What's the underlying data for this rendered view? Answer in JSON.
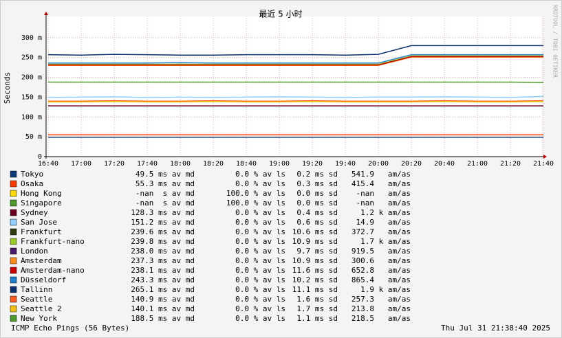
{
  "chart_data": {
    "type": "line",
    "title": "最近 5 小时",
    "y_label": "Seconds",
    "side_text": "RRDTOOL / TOBI OETIKER",
    "footer_left": "ICMP Echo Pings (56 Bytes)",
    "footer_right": "Thu Jul 31 21:38:40 2025",
    "x": [
      "16:40",
      "17:00",
      "17:20",
      "17:40",
      "18:00",
      "18:20",
      "18:40",
      "19:00",
      "19:20",
      "19:40",
      "20:00",
      "20:20",
      "20:40",
      "21:00",
      "21:20",
      "21:40"
    ],
    "ylim": [
      0,
      0.35
    ],
    "yticks": [
      {
        "value": 0,
        "label": "0"
      },
      {
        "value": 0.05,
        "label": "50 m"
      },
      {
        "value": 0.1,
        "label": "100 m"
      },
      {
        "value": 0.15,
        "label": "150 m"
      },
      {
        "value": 0.2,
        "label": "200 m"
      },
      {
        "value": 0.25,
        "label": "250 m"
      },
      {
        "value": 0.3,
        "label": "300 m"
      }
    ],
    "grid": true,
    "series": [
      {
        "name": "Tokyo",
        "color": "#0a3a7a",
        "values": [
          0.049,
          0.049,
          0.049,
          0.049,
          0.049,
          0.049,
          0.049,
          0.049,
          0.049,
          0.049,
          0.049,
          0.049,
          0.049,
          0.049,
          0.049,
          0.049
        ],
        "stats": [
          "49.5 ms av md",
          "0.0 % av ls",
          "0.2 ms sd",
          "541.9   am/as"
        ]
      },
      {
        "name": "Osaka",
        "color": "#ff3c00",
        "values": [
          0.055,
          0.055,
          0.055,
          0.055,
          0.055,
          0.055,
          0.055,
          0.055,
          0.055,
          0.055,
          0.055,
          0.055,
          0.055,
          0.055,
          0.055,
          0.055
        ],
        "stats": [
          "55.3 ms av md",
          "0.0 % av ls",
          "0.3 ms sd",
          "415.4   am/as"
        ]
      },
      {
        "name": "Hong Kong",
        "color": "#ffd700",
        "values": [
          null,
          null,
          null,
          null,
          null,
          null,
          null,
          null,
          null,
          null,
          null,
          null,
          null,
          null,
          null,
          null
        ],
        "stats": [
          "-nan  s av md",
          "100.0 % av ls",
          "0.0 ms sd",
          "-nan   am/as"
        ]
      },
      {
        "name": "Singapore",
        "color": "#4c9a2a",
        "values": [
          null,
          null,
          null,
          null,
          null,
          null,
          null,
          null,
          null,
          null,
          null,
          null,
          null,
          null,
          null,
          null
        ],
        "stats": [
          "-nan  s av md",
          "100.0 % av ls",
          "0.0 ms sd",
          "-nan   am/as"
        ]
      },
      {
        "name": "Sydney",
        "color": "#6b0020",
        "values": [
          0.128,
          0.128,
          0.128,
          0.128,
          0.128,
          0.128,
          0.128,
          0.128,
          0.128,
          0.128,
          0.128,
          0.128,
          0.128,
          0.128,
          0.128,
          0.128
        ],
        "stats": [
          "128.3 ms av md",
          "0.0 % av ls",
          "0.4 ms sd",
          "1.2 k am/as"
        ]
      },
      {
        "name": "San Jose",
        "color": "#8fcfff",
        "values": [
          0.149,
          0.15,
          0.151,
          0.149,
          0.15,
          0.149,
          0.15,
          0.151,
          0.15,
          0.149,
          0.15,
          0.15,
          0.151,
          0.15,
          0.149,
          0.152
        ],
        "stats": [
          "151.2 ms av md",
          "0.0 % av ls",
          "0.6 ms sd",
          "14.9   am/as"
        ]
      },
      {
        "name": "Frankfurt",
        "color": "#2e3d0f",
        "values": [
          0.232,
          0.232,
          0.232,
          0.232,
          0.233,
          0.232,
          0.232,
          0.232,
          0.232,
          0.232,
          0.232,
          0.253,
          0.253,
          0.253,
          0.253,
          0.253
        ],
        "stats": [
          "239.6 ms av md",
          "0.0 % av ls",
          "10.6 ms sd",
          "372.7   am/as"
        ]
      },
      {
        "name": "Frankfurt-nano",
        "color": "#99cc22",
        "values": [
          0.233,
          0.233,
          0.233,
          0.233,
          0.233,
          0.233,
          0.233,
          0.233,
          0.233,
          0.233,
          0.233,
          0.254,
          0.254,
          0.254,
          0.254,
          0.254
        ],
        "stats": [
          "239.8 ms av md",
          "0.0 % av ls",
          "10.9 ms sd",
          "1.7 k am/as"
        ]
      },
      {
        "name": "London",
        "color": "#4a1a6e",
        "values": [
          0.231,
          0.231,
          0.231,
          0.231,
          0.231,
          0.231,
          0.231,
          0.231,
          0.231,
          0.231,
          0.231,
          0.252,
          0.252,
          0.252,
          0.252,
          0.252
        ],
        "stats": [
          "238.0 ms av md",
          "0.0 % av ls",
          "9.7 ms sd",
          "919.5   am/as"
        ]
      },
      {
        "name": "Amsterdam",
        "color": "#ff8c1a",
        "values": [
          0.23,
          0.23,
          0.23,
          0.23,
          0.23,
          0.23,
          0.23,
          0.23,
          0.23,
          0.23,
          0.23,
          0.251,
          0.251,
          0.251,
          0.251,
          0.251
        ],
        "stats": [
          "237.3 ms av md",
          "0.0 % av ls",
          "10.9 ms sd",
          "300.6   am/as"
        ]
      },
      {
        "name": "Amsterdam-nano",
        "color": "#cc0000",
        "values": [
          0.231,
          0.231,
          0.231,
          0.231,
          0.231,
          0.231,
          0.231,
          0.231,
          0.231,
          0.231,
          0.231,
          0.252,
          0.252,
          0.252,
          0.252,
          0.252
        ],
        "stats": [
          "238.1 ms av md",
          "0.0 % av ls",
          "11.6 ms sd",
          "652.8   am/as"
        ]
      },
      {
        "name": "Düsseldorf",
        "color": "#2080d0",
        "values": [
          0.236,
          0.236,
          0.236,
          0.236,
          0.237,
          0.236,
          0.236,
          0.236,
          0.236,
          0.236,
          0.236,
          0.257,
          0.257,
          0.257,
          0.257,
          0.257
        ],
        "stats": [
          "243.3 ms av md",
          "0.0 % av ls",
          "10.2 ms sd",
          "865.4   am/as"
        ]
      },
      {
        "name": "Tallinn",
        "color": "#0b3070",
        "values": [
          0.257,
          0.256,
          0.258,
          0.257,
          0.256,
          0.256,
          0.257,
          0.257,
          0.257,
          0.256,
          0.258,
          0.28,
          0.28,
          0.28,
          0.28,
          0.28
        ],
        "stats": [
          "265.1 ms av md",
          "0.0 % av ls",
          "11.1 ms sd",
          "1.9 k am/as"
        ]
      },
      {
        "name": "Seattle",
        "color": "#ff5a1a",
        "values": [
          0.14,
          0.14,
          0.141,
          0.14,
          0.14,
          0.141,
          0.14,
          0.14,
          0.141,
          0.14,
          0.14,
          0.14,
          0.141,
          0.14,
          0.14,
          0.141
        ],
        "stats": [
          "140.9 ms av md",
          "0.0 % av ls",
          "1.6 ms sd",
          "257.3   am/as"
        ]
      },
      {
        "name": "Seattle 2",
        "color": "#f0c010",
        "values": [
          0.138,
          0.138,
          0.139,
          0.138,
          0.138,
          0.139,
          0.138,
          0.138,
          0.139,
          0.138,
          0.138,
          0.138,
          0.139,
          0.138,
          0.138,
          0.139
        ],
        "stats": [
          "140.1 ms av md",
          "0.0 % av ls",
          "1.7 ms sd",
          "213.8   am/as"
        ]
      },
      {
        "name": "New York",
        "color": "#4c9a2a",
        "values": [
          0.188,
          0.188,
          0.188,
          0.188,
          0.188,
          0.188,
          0.188,
          0.188,
          0.188,
          0.188,
          0.188,
          0.188,
          0.188,
          0.188,
          0.188,
          0.187
        ],
        "stats": [
          "188.5 ms av md",
          "0.0 % av ls",
          "1.1 ms sd",
          "218.5   am/as"
        ]
      }
    ]
  }
}
